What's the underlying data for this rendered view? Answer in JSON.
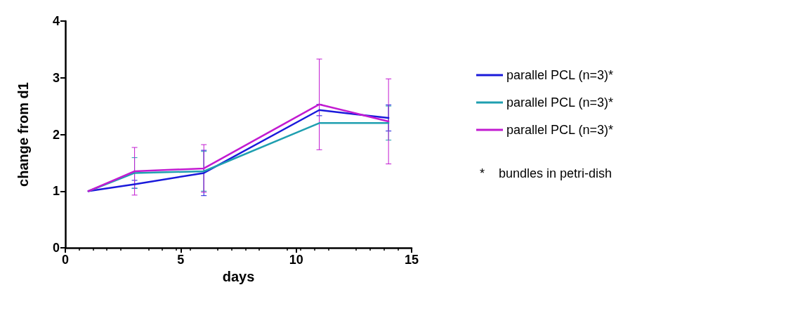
{
  "chart_data": {
    "type": "line",
    "xlabel": "days",
    "ylabel": "change from d1",
    "x": [
      1,
      3,
      6,
      11,
      14
    ],
    "series": [
      {
        "name": "parallel PCL (n=3)*",
        "color": "#1a1adb",
        "values": [
          1,
          1.12,
          1.32,
          2.43,
          2.29
        ],
        "errors": [
          null,
          0.07,
          0.4,
          0.1,
          0.23
        ]
      },
      {
        "name": "parallel PCL (n=3)*",
        "color": "#1f9fb0",
        "values": [
          1,
          1.32,
          1.35,
          2.2,
          2.2
        ],
        "errors": [
          null,
          0.27,
          0.35,
          null,
          0.3
        ]
      },
      {
        "name": "parallel PCL (n=3)*",
        "color": "#c21bd1",
        "values": [
          1,
          1.35,
          1.4,
          2.53,
          2.23
        ],
        "errors": [
          null,
          0.42,
          0.42,
          0.8,
          0.75
        ]
      }
    ],
    "annotations": [
      "*    bundles in petri-dish"
    ],
    "xlim": [
      0,
      15
    ],
    "xticks": [
      0,
      5,
      10,
      15
    ],
    "ylim": [
      0,
      4
    ],
    "yticks": [
      0,
      1,
      2,
      3,
      4
    ],
    "grid": false,
    "legend": "right",
    "marker": "none",
    "line_style": "solid"
  }
}
